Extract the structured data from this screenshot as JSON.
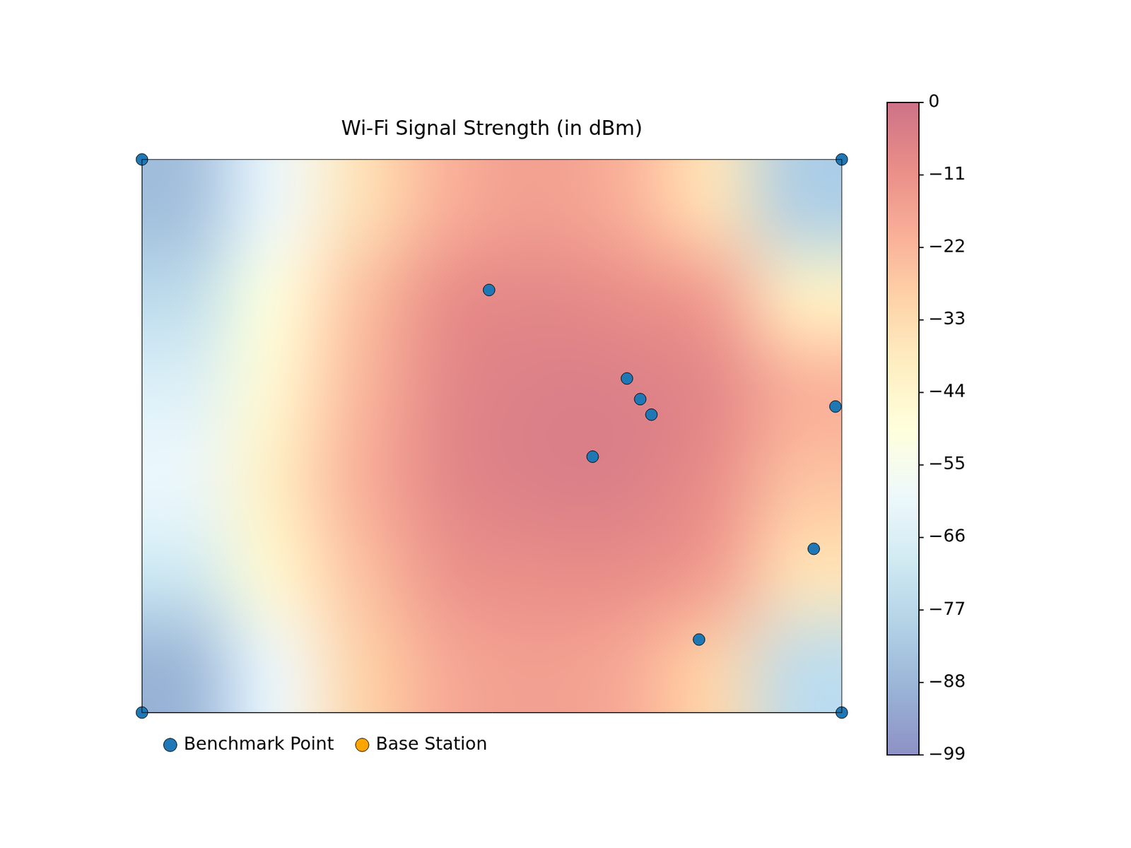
{
  "chart_data": {
    "type": "heatmap",
    "title": "Wi-Fi Signal Strength (in dBm)",
    "xlim": [
      0,
      1000
    ],
    "ylim": [
      0,
      750
    ],
    "tick_labels": false,
    "grid": false,
    "legend": "bottom",
    "cells": [
      [
        -85,
        -60,
        -35,
        -20,
        -15,
        -20,
        -35,
        -80
      ],
      [
        -75,
        -50,
        -25,
        -10,
        -8,
        -10,
        -15,
        -40
      ],
      [
        -65,
        -45,
        -22,
        -8,
        -5,
        -5,
        -8,
        -20
      ],
      [
        -60,
        -40,
        -20,
        -8,
        -5,
        -5,
        -10,
        -25
      ],
      [
        -70,
        -45,
        -25,
        -12,
        -10,
        -10,
        -15,
        -35
      ],
      [
        -88,
        -60,
        -30,
        -18,
        -15,
        -18,
        -30,
        -75
      ]
    ],
    "colorbar": {
      "range": [
        -99,
        0
      ],
      "ticks": [
        {
          "value": -99,
          "label": "−99"
        },
        {
          "value": -88,
          "label": "−88"
        },
        {
          "value": -77,
          "label": "−77"
        },
        {
          "value": -66,
          "label": "−66"
        },
        {
          "value": -55,
          "label": "−55"
        },
        {
          "value": -44,
          "label": "−44"
        },
        {
          "value": -33,
          "label": "−33"
        },
        {
          "value": -22,
          "label": "−22"
        },
        {
          "value": -11,
          "label": "−11"
        },
        0
      ]
    },
    "series": [
      {
        "name": "Benchmark Point",
        "color": "#1f77b4",
        "marker": "circle",
        "x": [
          496,
          693,
          712,
          728,
          644,
          991,
          960,
          796,
          0,
          1000,
          0,
          1000
        ],
        "y": [
          573,
          453,
          425,
          404,
          347,
          415,
          222,
          99,
          0,
          0,
          750,
          750
        ]
      },
      {
        "name": "Base Station",
        "color": "#ffa500",
        "marker": "circle",
        "x": [],
        "y": []
      }
    ]
  }
}
